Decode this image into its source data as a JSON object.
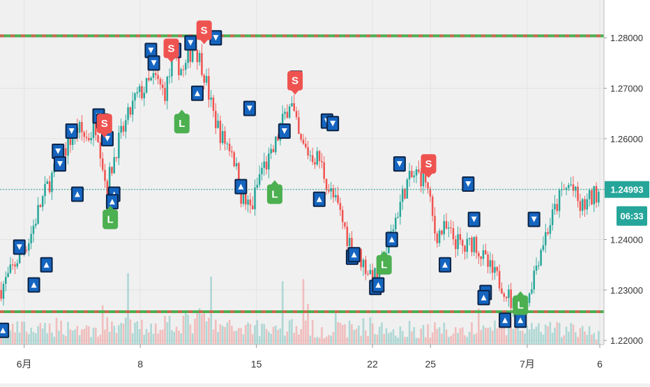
{
  "chart_data": {
    "type": "candlestick",
    "title": "",
    "xlabel": "",
    "ylabel": "",
    "ylim": [
      1.2192,
      1.2875
    ],
    "x_domain": [
      0,
      62
    ],
    "grid": true,
    "y_ticks": [
      {
        "value": 1.22,
        "label": "1.22000"
      },
      {
        "value": 1.23,
        "label": "1.23000"
      },
      {
        "value": 1.24,
        "label": "1.24000"
      },
      {
        "value": 1.25,
        "label": "1.25000"
      },
      {
        "value": 1.26,
        "label": "1.26000"
      },
      {
        "value": 1.27,
        "label": "1.27000"
      },
      {
        "value": 1.28,
        "label": "1.28000"
      }
    ],
    "x_ticks": [
      {
        "pos": 2.5,
        "label": "6月"
      },
      {
        "pos": 14.5,
        "label": "8"
      },
      {
        "pos": 26.5,
        "label": "15"
      },
      {
        "pos": 38.5,
        "label": "22"
      },
      {
        "pos": 44.5,
        "label": "25"
      },
      {
        "pos": 54.5,
        "label": "7月"
      },
      {
        "pos": 62,
        "label": "6"
      }
    ],
    "price_path": [
      [
        0,
        1.23
      ],
      [
        1,
        1.233
      ],
      [
        2,
        1.237
      ],
      [
        3,
        1.24
      ],
      [
        4,
        1.246
      ],
      [
        5,
        1.251
      ],
      [
        6,
        1.255
      ],
      [
        7,
        1.259
      ],
      [
        8,
        1.262
      ],
      [
        9,
        1.26
      ],
      [
        10,
        1.263
      ],
      [
        11,
        1.25
      ],
      [
        12,
        1.258
      ],
      [
        13,
        1.263
      ],
      [
        14,
        1.268
      ],
      [
        15,
        1.27
      ],
      [
        16,
        1.272
      ],
      [
        17,
        1.269
      ],
      [
        18,
        1.276
      ],
      [
        19,
        1.273
      ],
      [
        20,
        1.279
      ],
      [
        21,
        1.274
      ],
      [
        22,
        1.265
      ],
      [
        23,
        1.26
      ],
      [
        24,
        1.258
      ],
      [
        25,
        1.248
      ],
      [
        26,
        1.246
      ],
      [
        27,
        1.254
      ],
      [
        28,
        1.256
      ],
      [
        29,
        1.262
      ],
      [
        30,
        1.268
      ],
      [
        31,
        1.259
      ],
      [
        32,
        1.257
      ],
      [
        33,
        1.256
      ],
      [
        34,
        1.25
      ],
      [
        35,
        1.246
      ],
      [
        36,
        1.24
      ],
      [
        37,
        1.237
      ],
      [
        38,
        1.234
      ],
      [
        39,
        1.232
      ],
      [
        40,
        1.238
      ],
      [
        41,
        1.245
      ],
      [
        42,
        1.251
      ],
      [
        43,
        1.253
      ],
      [
        44,
        1.252
      ],
      [
        45,
        1.241
      ],
      [
        46,
        1.242
      ],
      [
        47,
        1.24
      ],
      [
        48,
        1.238
      ],
      [
        49,
        1.24
      ],
      [
        50,
        1.236
      ],
      [
        51,
        1.233
      ],
      [
        52,
        1.231
      ],
      [
        53,
        1.227
      ],
      [
        54,
        1.225
      ],
      [
        55,
        1.232
      ],
      [
        56,
        1.239
      ],
      [
        57,
        1.244
      ],
      [
        58,
        1.249
      ],
      [
        59,
        1.251
      ],
      [
        60,
        1.246
      ],
      [
        61,
        1.248
      ],
      [
        62,
        1.25
      ]
    ],
    "volume_path": [
      [
        0,
        0.4
      ],
      [
        2,
        0.6
      ],
      [
        4,
        0.5
      ],
      [
        6,
        0.7
      ],
      [
        8,
        0.6
      ],
      [
        10,
        0.5
      ],
      [
        12,
        0.8
      ],
      [
        14,
        0.6
      ],
      [
        16,
        0.7
      ],
      [
        18,
        0.9
      ],
      [
        20,
        0.8
      ],
      [
        21,
        1.0
      ],
      [
        22,
        0.7
      ],
      [
        24,
        0.6
      ],
      [
        26,
        0.7
      ],
      [
        28,
        0.6
      ],
      [
        30,
        0.7
      ],
      [
        32,
        0.6
      ],
      [
        34,
        0.5
      ],
      [
        36,
        0.6
      ],
      [
        38,
        0.7
      ],
      [
        40,
        0.5
      ],
      [
        42,
        0.6
      ],
      [
        44,
        0.5
      ],
      [
        46,
        0.6
      ],
      [
        48,
        0.5
      ],
      [
        50,
        0.6
      ],
      [
        52,
        0.7
      ],
      [
        54,
        0.6
      ],
      [
        56,
        0.5
      ],
      [
        58,
        0.6
      ],
      [
        60,
        0.5
      ],
      [
        62,
        0.4
      ]
    ],
    "horizontal_lines": [
      {
        "name": "resistance",
        "value": 1.2804,
        "colors": [
          "#4caf50",
          "#ef5350"
        ]
      },
      {
        "name": "support",
        "value": 1.2257,
        "colors": [
          "#4caf50",
          "#ef5350"
        ]
      }
    ],
    "current_price": {
      "value": 1.24993,
      "label": "1.24993",
      "countdown": "06:33",
      "color": "#26a69a"
    },
    "signals": [
      {
        "type": "S",
        "pos": 21.1,
        "price": 1.2815,
        "color": "#ef5350"
      },
      {
        "type": "S",
        "pos": 17.7,
        "price": 1.2779,
        "color": "#ef5350"
      },
      {
        "type": "S",
        "pos": 30.5,
        "price": 1.2715,
        "color": "#ef5350"
      },
      {
        "type": "S",
        "pos": 10.8,
        "price": 1.263,
        "color": "#ef5350"
      },
      {
        "type": "S",
        "pos": 44.3,
        "price": 1.255,
        "color": "#ef5350"
      },
      {
        "type": "L",
        "pos": 18.8,
        "price": 1.263,
        "color": "#4caf50"
      },
      {
        "type": "L",
        "pos": 28.4,
        "price": 1.249,
        "color": "#4caf50"
      },
      {
        "type": "L",
        "pos": 11.4,
        "price": 1.244,
        "color": "#4caf50"
      },
      {
        "type": "L",
        "pos": 39.7,
        "price": 1.235,
        "color": "#4caf50"
      },
      {
        "type": "L",
        "pos": 53.8,
        "price": 1.227,
        "color": "#4caf50"
      }
    ],
    "markers": [
      {
        "dir": "down",
        "pos": 2.0,
        "price": 1.2385
      },
      {
        "dir": "up",
        "pos": 3.5,
        "price": 1.231
      },
      {
        "dir": "up",
        "pos": 4.8,
        "price": 1.235
      },
      {
        "dir": "down",
        "pos": 6.0,
        "price": 1.2575
      },
      {
        "dir": "down",
        "pos": 6.2,
        "price": 1.255
      },
      {
        "dir": "up",
        "pos": 8.0,
        "price": 1.249
      },
      {
        "dir": "down",
        "pos": 7.4,
        "price": 1.2615
      },
      {
        "dir": "down",
        "pos": 10.2,
        "price": 1.2645
      },
      {
        "dir": "down",
        "pos": 10.6,
        "price": 1.2635
      },
      {
        "dir": "down",
        "pos": 11.1,
        "price": 1.26
      },
      {
        "dir": "up",
        "pos": 11.8,
        "price": 1.249
      },
      {
        "dir": "up",
        "pos": 11.6,
        "price": 1.2475
      },
      {
        "dir": "down",
        "pos": 15.6,
        "price": 1.2775
      },
      {
        "dir": "down",
        "pos": 15.9,
        "price": 1.275
      },
      {
        "dir": "down",
        "pos": 18.1,
        "price": 1.2775
      },
      {
        "dir": "down",
        "pos": 19.7,
        "price": 1.279
      },
      {
        "dir": "up",
        "pos": 20.4,
        "price": 1.269
      },
      {
        "dir": "down",
        "pos": 22.3,
        "price": 1.28
      },
      {
        "dir": "down",
        "pos": 25.8,
        "price": 1.266
      },
      {
        "dir": "up",
        "pos": 24.9,
        "price": 1.2505
      },
      {
        "dir": "down",
        "pos": 29.4,
        "price": 1.2615
      },
      {
        "dir": "down",
        "pos": 30.6,
        "price": 1.272
      },
      {
        "dir": "down",
        "pos": 33.8,
        "price": 1.2635
      },
      {
        "dir": "down",
        "pos": 34.4,
        "price": 1.263
      },
      {
        "dir": "up",
        "pos": 33.0,
        "price": 1.248
      },
      {
        "dir": "up",
        "pos": 36.4,
        "price": 1.2365
      },
      {
        "dir": "up",
        "pos": 36.6,
        "price": 1.237
      },
      {
        "dir": "up",
        "pos": 38.8,
        "price": 1.2305
      },
      {
        "dir": "up",
        "pos": 39.1,
        "price": 1.231
      },
      {
        "dir": "down",
        "pos": 41.3,
        "price": 1.255
      },
      {
        "dir": "up",
        "pos": 40.5,
        "price": 1.24
      },
      {
        "dir": "up",
        "pos": 46.0,
        "price": 1.235
      },
      {
        "dir": "down",
        "pos": 48.4,
        "price": 1.251
      },
      {
        "dir": "down",
        "pos": 49.0,
        "price": 1.244
      },
      {
        "dir": "up",
        "pos": 50.2,
        "price": 1.2295
      },
      {
        "dir": "up",
        "pos": 50.0,
        "price": 1.2285
      },
      {
        "dir": "up",
        "pos": 52.2,
        "price": 1.224
      },
      {
        "dir": "up",
        "pos": 53.8,
        "price": 1.224
      },
      {
        "dir": "down",
        "pos": 55.2,
        "price": 1.244
      },
      {
        "dir": "up",
        "pos": 0.3,
        "price": 1.222
      }
    ]
  }
}
